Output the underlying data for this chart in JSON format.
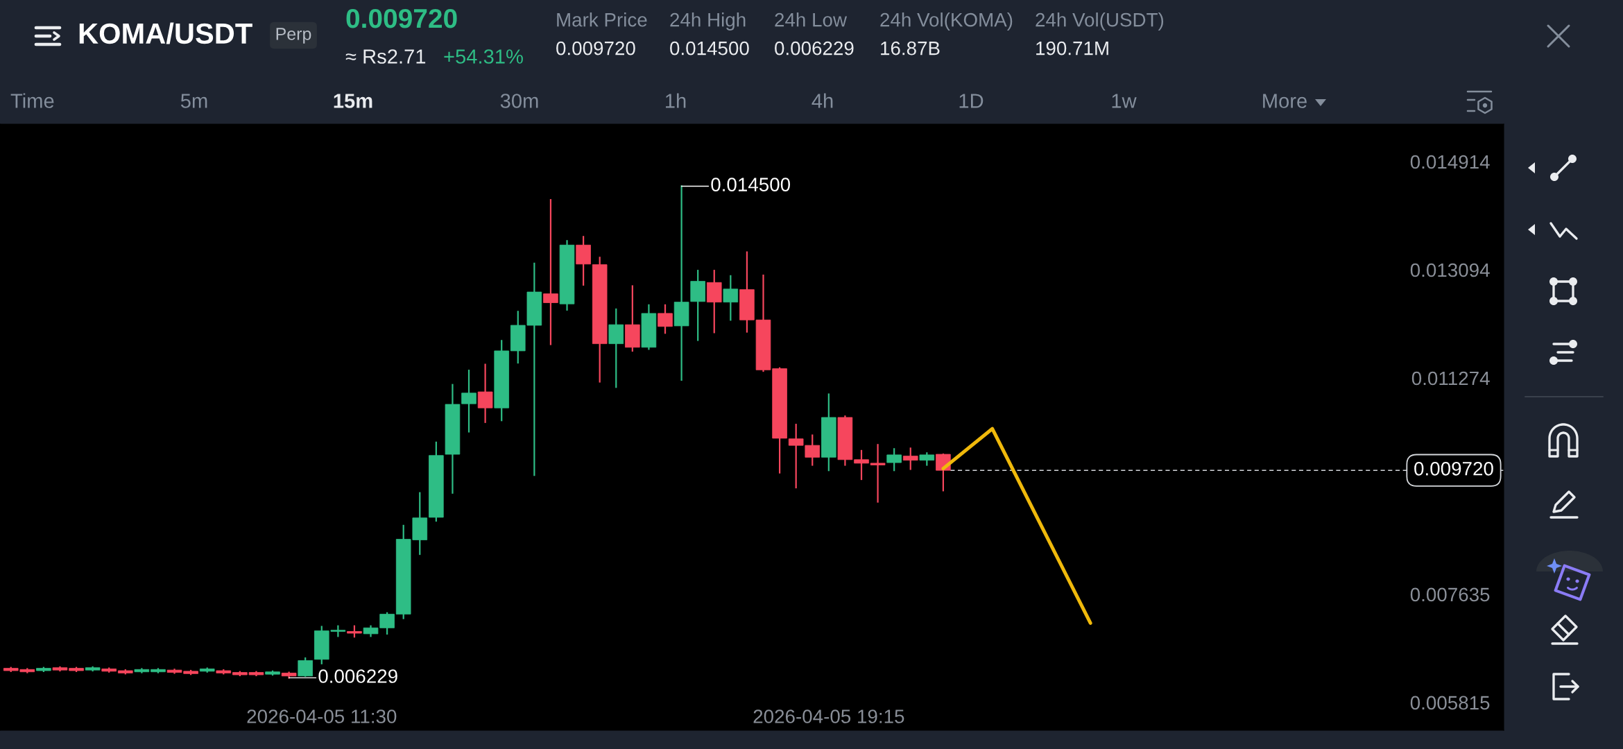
{
  "chart_data": {
    "type": "candlestick",
    "title": "KOMA/USDT",
    "series": [
      {
        "x": [
          "2026-04-05T06:45",
          "2026-04-05T07:00",
          "2026-04-05T07:15",
          "2026-04-05T07:30",
          "2026-04-05T07:45",
          "2026-04-05T08:00",
          "2026-04-05T08:15",
          "2026-04-05T08:30",
          "2026-04-05T08:45",
          "2026-04-05T09:00",
          "2026-04-05T09:15",
          "2026-04-05T09:30",
          "2026-04-05T09:45",
          "2026-04-05T10:00",
          "2026-04-05T10:15",
          "2026-04-05T10:30",
          "2026-04-05T10:45",
          "2026-04-05T11:00",
          "2026-04-05T11:15",
          "2026-04-05T11:30",
          "2026-04-05T11:45",
          "2026-04-05T12:00",
          "2026-04-05T12:15",
          "2026-04-05T12:30",
          "2026-04-05T12:45",
          "2026-04-05T13:00",
          "2026-04-05T13:15",
          "2026-04-05T13:30",
          "2026-04-05T13:45",
          "2026-04-05T14:00",
          "2026-04-05T14:15",
          "2026-04-05T14:30",
          "2026-04-05T14:45",
          "2026-04-05T15:00",
          "2026-04-05T15:15",
          "2026-04-05T15:30",
          "2026-04-05T15:45",
          "2026-04-05T16:00",
          "2026-04-05T16:15",
          "2026-04-05T16:30",
          "2026-04-05T16:45",
          "2026-04-05T17:00",
          "2026-04-05T17:15",
          "2026-04-05T17:30",
          "2026-04-05T17:45",
          "2026-04-05T18:00",
          "2026-04-05T18:15",
          "2026-04-05T18:30",
          "2026-04-05T18:45",
          "2026-04-05T19:00",
          "2026-04-05T19:15",
          "2026-04-05T19:30",
          "2026-04-05T19:45",
          "2026-04-05T20:00",
          "2026-04-05T20:15",
          "2026-04-05T20:30",
          "2026-04-05T20:45",
          "2026-04-05T21:00"
        ],
        "ohlc": [
          [
            0.00639,
            0.0064,
            0.00634,
            0.00635
          ],
          [
            0.00637,
            0.00638,
            0.00632,
            0.00633
          ],
          [
            0.00635,
            0.0064,
            0.00634,
            0.00639
          ],
          [
            0.0064,
            0.00641,
            0.00635,
            0.00636
          ],
          [
            0.00639,
            0.0064,
            0.00634,
            0.00635
          ],
          [
            0.00636,
            0.00641,
            0.00635,
            0.0064
          ],
          [
            0.00638,
            0.00639,
            0.00633,
            0.00634
          ],
          [
            0.00635,
            0.00636,
            0.0063,
            0.00631
          ],
          [
            0.00633,
            0.00638,
            0.00632,
            0.00637
          ],
          [
            0.00633,
            0.00638,
            0.00632,
            0.00637
          ],
          [
            0.00636,
            0.00637,
            0.00631,
            0.00632
          ],
          [
            0.00634,
            0.00635,
            0.00629,
            0.0063
          ],
          [
            0.00634,
            0.00639,
            0.00633,
            0.00638
          ],
          [
            0.00635,
            0.00636,
            0.0063,
            0.00631
          ],
          [
            0.00632,
            0.00633,
            0.00627,
            0.00628
          ],
          [
            0.00632,
            0.00633,
            0.00627,
            0.00628
          ],
          [
            0.00629,
            0.00634,
            0.00628,
            0.00633
          ],
          [
            0.00631,
            0.00632,
            0.006229,
            0.00626
          ],
          [
            0.00626,
            0.00656,
            0.00626,
            0.00652
          ],
          [
            0.00654,
            0.00709,
            0.00647,
            0.00702
          ],
          [
            0.00701,
            0.0071,
            0.00693,
            0.00703
          ],
          [
            0.00701,
            0.0071,
            0.00692,
            0.00698
          ],
          [
            0.00697,
            0.0071,
            0.00693,
            0.00707
          ],
          [
            0.00707,
            0.00732,
            0.00697,
            0.0073
          ],
          [
            0.0073,
            0.00879,
            0.00723,
            0.00856
          ],
          [
            0.00855,
            0.00934,
            0.00831,
            0.00892
          ],
          [
            0.00893,
            0.01019,
            0.00887,
            0.00997
          ],
          [
            0.00999,
            0.01116,
            0.00934,
            0.01083
          ],
          [
            0.01084,
            0.0114,
            0.01037,
            0.01102
          ],
          [
            0.01104,
            0.0115,
            0.01053,
            0.01077
          ],
          [
            0.01077,
            0.0119,
            0.01056,
            0.01173
          ],
          [
            0.01173,
            0.01239,
            0.01153,
            0.01216
          ],
          [
            0.01216,
            0.0132,
            0.00964,
            0.01272
          ],
          [
            0.01269,
            0.01427,
            0.01184,
            0.01254
          ],
          [
            0.01252,
            0.01358,
            0.01242,
            0.01351
          ],
          [
            0.01351,
            0.01365,
            0.01284,
            0.01319
          ],
          [
            0.01318,
            0.0133,
            0.01121,
            0.01185
          ],
          [
            0.01185,
            0.01243,
            0.01112,
            0.01217
          ],
          [
            0.01217,
            0.01282,
            0.01173,
            0.01179
          ],
          [
            0.01179,
            0.0125,
            0.01176,
            0.01236
          ],
          [
            0.01236,
            0.0125,
            0.01203,
            0.01214
          ],
          [
            0.01215,
            0.0145,
            0.01124,
            0.01255
          ],
          [
            0.01256,
            0.01308,
            0.01191,
            0.0129
          ],
          [
            0.01288,
            0.01308,
            0.01204,
            0.01255
          ],
          [
            0.01255,
            0.01299,
            0.01225,
            0.01277
          ],
          [
            0.01276,
            0.01339,
            0.01205,
            0.01225
          ],
          [
            0.01225,
            0.013,
            0.01139,
            0.01141
          ],
          [
            0.01143,
            0.01144,
            0.00968,
            0.01026
          ],
          [
            0.01025,
            0.01049,
            0.00943,
            0.01014
          ],
          [
            0.01014,
            0.01031,
            0.00981,
            0.00994
          ],
          [
            0.00994,
            0.011,
            0.00972,
            0.01061
          ],
          [
            0.01061,
            0.01063,
            0.00981,
            0.0099
          ],
          [
            0.0099,
            0.01005,
            0.00957,
            0.00984
          ],
          [
            0.00984,
            0.01015,
            0.00919,
            0.00981
          ],
          [
            0.00985,
            0.01008,
            0.00972,
            0.00998
          ],
          [
            0.00996,
            0.01009,
            0.00974,
            0.00989
          ],
          [
            0.00989,
            0.01001,
            0.00981,
            0.00998
          ],
          [
            0.00999,
            0.00999,
            0.00938,
            0.00972
          ]
        ],
        "colors": [
          "#f6465d",
          "#f6465d",
          "#2ebd85",
          "#f6465d",
          "#f6465d",
          "#2ebd85",
          "#f6465d",
          "#f6465d",
          "#2ebd85",
          "#2ebd85",
          "#f6465d",
          "#f6465d",
          "#2ebd85",
          "#f6465d",
          "#f6465d",
          "#f6465d",
          "#2ebd85",
          "#f6465d",
          "#2ebd85",
          "#2ebd85",
          "#2ebd85",
          "#f6465d",
          "#2ebd85",
          "#2ebd85",
          "#2ebd85",
          "#2ebd85",
          "#2ebd85",
          "#2ebd85",
          "#2ebd85",
          "#f6465d",
          "#2ebd85",
          "#2ebd85",
          "#2ebd85",
          "#f6465d",
          "#2ebd85",
          "#f6465d",
          "#f6465d",
          "#2ebd85",
          "#f6465d",
          "#2ebd85",
          "#f6465d",
          "#2ebd85",
          "#2ebd85",
          "#f6465d",
          "#2ebd85",
          "#f6465d",
          "#f6465d",
          "#f6465d",
          "#f6465d",
          "#f6465d",
          "#2ebd85",
          "#f6465d",
          "#f6465d",
          "#f6465d",
          "#2ebd85",
          "#f6465d",
          "#2ebd85",
          "#f6465d"
        ]
      },
      {
        "type": "line",
        "x": [
          "2026-04-05T21:00",
          "2026-04-05T21:45",
          "2026-04-05T23:15"
        ],
        "values": [
          0.00975,
          0.01042,
          0.00715
        ],
        "color": "#f0b90b"
      }
    ],
    "xlim": [
      "2026-04-05T06:35",
      "2026-04-06T05:34"
    ],
    "xticks": [
      {
        "value": "2026-04-05T11:30",
        "label": "2026-04-05 11:30"
      },
      {
        "value": "2026-04-05T19:15",
        "label": "2026-04-05 19:15"
      }
    ],
    "ylim": [
      0.005347,
      0.015544
    ],
    "yticks": [
      0.005815,
      0.007635,
      0.011274,
      0.013094,
      0.014914
    ],
    "ref_lines": [
      {
        "axis": "y",
        "value": 0.00972,
        "label": "0.009720",
        "color": "#d5d8dc",
        "line_style": "dashed"
      }
    ],
    "annotations": [
      {
        "text": "0.014500",
        "x": "2026-04-05T17:00",
        "y": 0.0145
      },
      {
        "text": "0.006229",
        "x": "2026-04-05T11:00",
        "y": 0.006229
      },
      "Perp",
      "0.009720",
      "≈ Rs2.71",
      "+54.31%",
      "Mark Price",
      "0.009720",
      "24h High",
      "0.014500",
      "24h Low",
      "0.006229",
      "24h Vol(KOMA)",
      "16.87B",
      "24h Vol(USDT)",
      "190.71M",
      "Time",
      "5m",
      "15m",
      "30m",
      "1h",
      "4h",
      "1D",
      "1w",
      "More"
    ]
  }
}
